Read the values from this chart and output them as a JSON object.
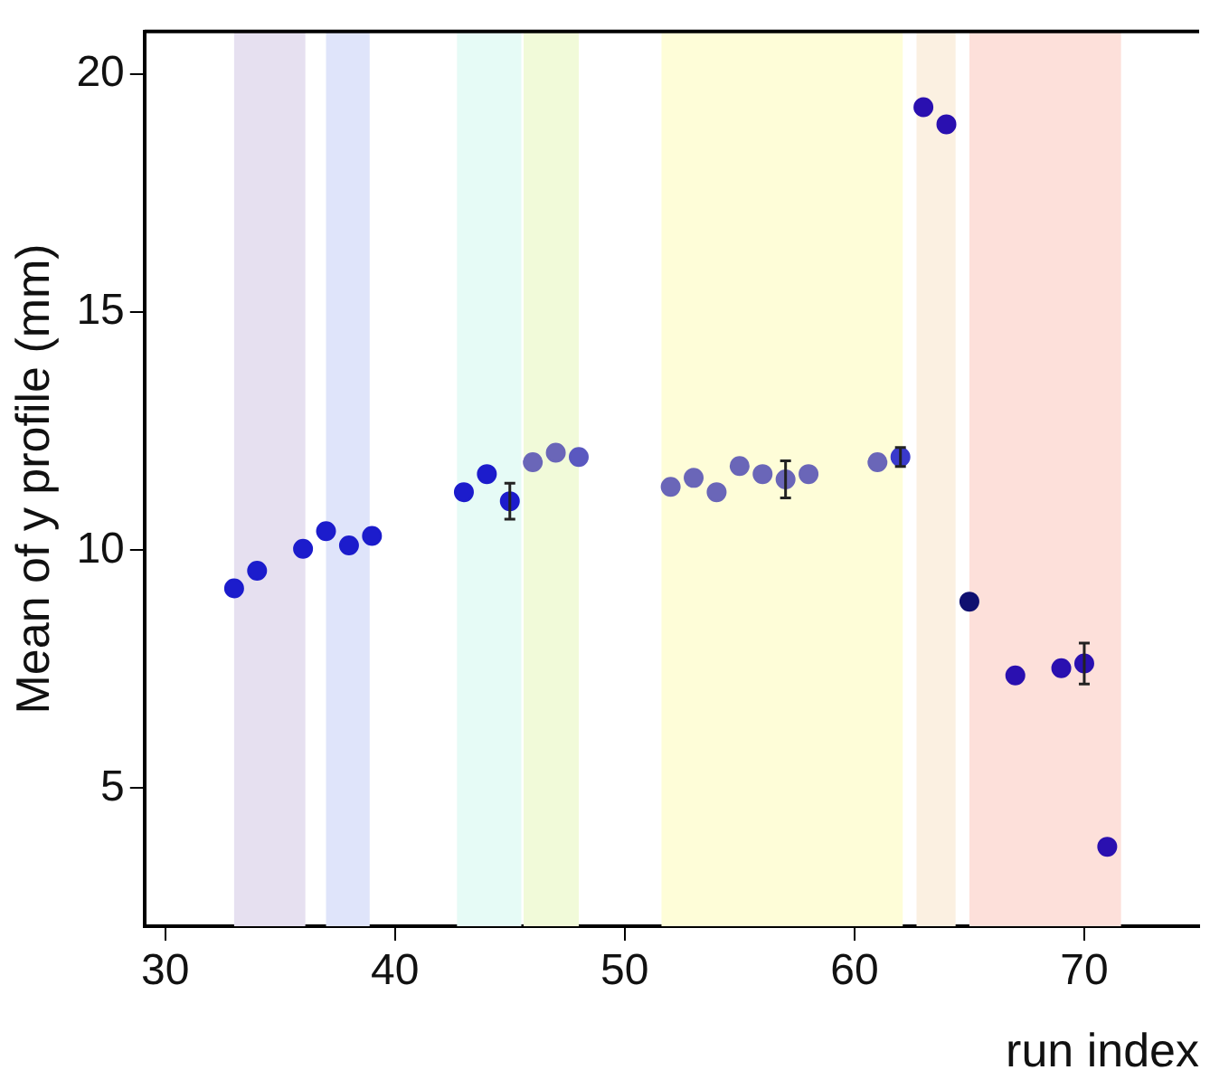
{
  "chart_data": {
    "type": "scatter",
    "xlabel": "run index",
    "ylabel": "Mean of y profile (mm)",
    "x": [
      33,
      34,
      36,
      37,
      38,
      39,
      43,
      44,
      45,
      46,
      47,
      48,
      52,
      53,
      54,
      55,
      56,
      57,
      58,
      61,
      62,
      63,
      64,
      65,
      67,
      69,
      70,
      71
    ],
    "values": [
      9.2,
      9.57,
      10.03,
      10.4,
      10.1,
      10.3,
      11.22,
      11.6,
      11.03,
      11.85,
      12.05,
      11.96,
      11.33,
      11.52,
      11.22,
      11.77,
      11.6,
      11.49,
      11.6,
      11.85,
      11.96,
      19.31,
      18.95,
      8.92,
      7.37,
      7.52,
      7.62,
      3.77
    ],
    "errors": [
      null,
      null,
      null,
      null,
      null,
      null,
      null,
      null,
      0.38,
      null,
      null,
      null,
      null,
      null,
      null,
      null,
      null,
      0.39,
      null,
      null,
      0.2,
      null,
      null,
      null,
      null,
      null,
      0.43,
      null
    ],
    "colors": [
      "#1c1ccc",
      "#1c1ccc",
      "#1c1ccc",
      "#1c1ccc",
      "#1c1ccc",
      "#1c1ccc",
      "#1c1ccc",
      "#1c1ccc",
      "#1c1ccc",
      "#6a66b8",
      "#6a66b8",
      "#5a58c0",
      "#6a66b8",
      "#6a66b8",
      "#6a66b8",
      "#6a66b8",
      "#6a66b8",
      "#6a66b8",
      "#6a66b8",
      "#6a66b8",
      "#3a3acc",
      "#2a10b0",
      "#2a10b0",
      "#101070",
      "#2a10b0",
      "#2a10b0",
      "#2a10b0",
      "#2a10b0"
    ],
    "marker": "circle",
    "xlim": [
      29.1,
      75
    ],
    "xticks": [
      30,
      40,
      50,
      60,
      70
    ],
    "ylim": [
      2.1,
      20.9
    ],
    "yticks": [
      5,
      10,
      15,
      20
    ],
    "grid": false,
    "legend": false,
    "bands": [
      {
        "axis": "x",
        "from": 33.0,
        "to": 36.1,
        "color": "#e6e0f0"
      },
      {
        "axis": "x",
        "from": 37.0,
        "to": 38.9,
        "color": "#dfe4fa"
      },
      {
        "axis": "x",
        "from": 42.7,
        "to": 45.5,
        "color": "#e6fbf6"
      },
      {
        "axis": "x",
        "from": 45.6,
        "to": 48.0,
        "color": "#f1fad9"
      },
      {
        "axis": "x",
        "from": 51.6,
        "to": 62.1,
        "color": "#fefdd8"
      },
      {
        "axis": "x",
        "from": 62.7,
        "to": 64.4,
        "color": "#fbf0e1"
      },
      {
        "axis": "x",
        "from": 65.0,
        "to": 71.6,
        "color": "#fde0da"
      }
    ]
  }
}
